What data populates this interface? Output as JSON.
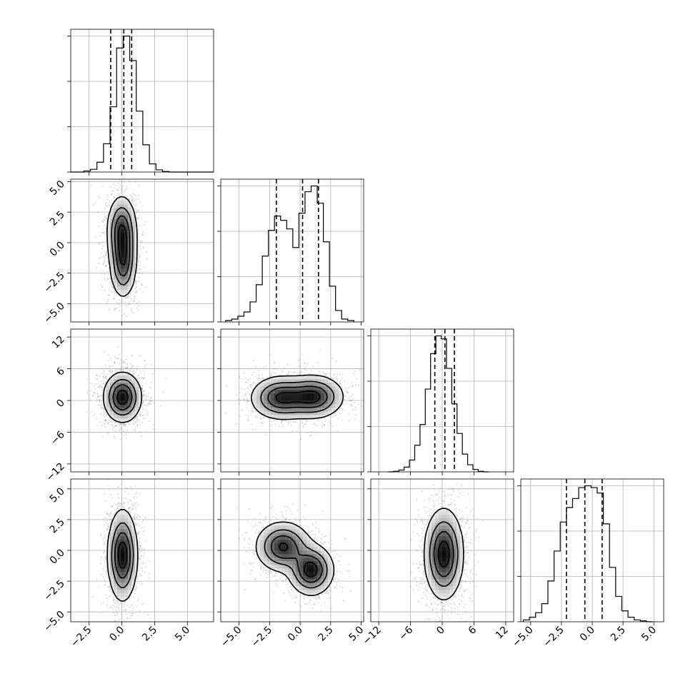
{
  "chart_data": {
    "type": "corner",
    "title": "",
    "grid": true,
    "variables": [
      {
        "range": [
          -3.9,
          7.0
        ],
        "ticks": [
          -2.5,
          0.0,
          2.5,
          5.0
        ],
        "tick_labels": [
          "−2.5",
          "0.0",
          "2.5",
          "5.0"
        ],
        "mean": 0.1,
        "sd": 0.65
      },
      {
        "range": [
          -6.5,
          5.2
        ],
        "ticks": [
          -5.0,
          -2.5,
          0.0,
          2.5,
          5.0
        ],
        "tick_labels": [
          "−5.0",
          "−2.5",
          "0.0",
          "2.5",
          "5.0"
        ],
        "mean": 0.0,
        "sd": 2.0
      },
      {
        "range": [
          -13.5,
          13.5
        ],
        "ticks": [
          -12,
          -6,
          0,
          6,
          12
        ],
        "tick_labels": [
          "−12",
          "−6",
          "0",
          "6",
          "12"
        ],
        "mean": 0.5,
        "sd": 2.1
      },
      {
        "range": [
          -5.8,
          5.8
        ],
        "ticks": [
          -5.0,
          -2.5,
          0.0,
          2.5,
          5.0
        ],
        "tick_labels": [
          "−5.0",
          "−2.5",
          "0.0",
          "2.5",
          "5.0"
        ],
        "mean": -0.6,
        "sd": 1.8
      }
    ],
    "quantile_lines": [
      [
        -0.85,
        0.15,
        0.75
      ],
      [
        -1.95,
        0.2,
        1.5
      ],
      [
        -1.4,
        0.5,
        2.3
      ],
      [
        -2.1,
        -0.6,
        0.8
      ]
    ],
    "histograms": [
      {
        "edges": [
          -3.9,
          -3.4,
          -2.9,
          -2.4,
          -1.9,
          -1.4,
          -0.9,
          -0.4,
          0.1,
          0.6,
          1.1,
          1.6,
          2.1,
          2.6,
          3.1,
          3.6,
          4.1,
          4.6,
          5.1,
          5.6,
          6.1,
          6.6,
          7.0
        ],
        "counts": [
          0,
          0,
          2,
          5,
          18,
          52,
          120,
          228,
          250,
          205,
          112,
          50,
          15,
          4,
          1,
          0,
          0,
          0,
          0,
          0,
          0,
          0
        ]
      },
      {
        "edges": [
          -6.1,
          -5.6,
          -5.1,
          -4.6,
          -4.1,
          -3.6,
          -3.1,
          -2.6,
          -2.1,
          -1.6,
          -1.1,
          -0.6,
          -0.1,
          0.4,
          0.9,
          1.4,
          1.9,
          2.4,
          2.9,
          3.4,
          3.9,
          4.4
        ],
        "counts": [
          2,
          4,
          8,
          14,
          28,
          52,
          92,
          128,
          148,
          142,
          130,
          104,
          152,
          182,
          190,
          166,
          112,
          50,
          16,
          4,
          2
        ]
      },
      {
        "edges": [
          -10.2,
          -9.2,
          -8.2,
          -7.2,
          -6.2,
          -5.2,
          -4.2,
          -3.2,
          -2.2,
          -1.2,
          -0.2,
          0.8,
          1.8,
          2.8,
          3.8,
          4.8,
          5.8,
          6.8,
          7.8,
          8.8
        ],
        "counts": [
          0,
          1,
          3,
          8,
          20,
          45,
          80,
          140,
          200,
          230,
          225,
          175,
          115,
          65,
          30,
          12,
          4,
          1,
          0
        ]
      },
      {
        "edges": [
          -5.6,
          -5.1,
          -4.6,
          -4.1,
          -3.6,
          -3.1,
          -2.6,
          -2.1,
          -1.6,
          -1.1,
          -0.6,
          -0.1,
          0.4,
          0.9,
          1.4,
          1.9,
          2.4,
          2.9,
          3.4,
          3.9,
          4.4,
          4.9
        ],
        "counts": [
          2,
          5,
          10,
          20,
          45,
          78,
          110,
          126,
          136,
          148,
          150,
          148,
          142,
          108,
          60,
          28,
          12,
          5,
          2,
          1,
          0
        ]
      }
    ],
    "pairs": [
      {
        "x": 0,
        "y": 1,
        "blobs": [
          [
            0.0,
            1.0,
            0.55,
            1.4,
            1.0
          ],
          [
            0.1,
            -1.7,
            0.5,
            1.4,
            0.9
          ]
        ]
      },
      {
        "x": 0,
        "y": 2,
        "blobs": [
          [
            0.05,
            0.6,
            0.7,
            2.3,
            1.0
          ]
        ]
      },
      {
        "x": 1,
        "y": 2,
        "blobs": [
          [
            -1.6,
            0.5,
            1.2,
            2.0,
            0.95
          ],
          [
            1.1,
            0.7,
            1.2,
            2.0,
            1.0
          ]
        ]
      },
      {
        "x": 0,
        "y": 3,
        "blobs": [
          [
            0.05,
            -0.4,
            0.55,
            1.8,
            1.0
          ]
        ]
      },
      {
        "x": 1,
        "y": 3,
        "blobs": [
          [
            -1.4,
            0.3,
            1.1,
            1.0,
            0.9
          ],
          [
            0.9,
            -1.6,
            0.9,
            1.0,
            1.0
          ]
        ]
      },
      {
        "x": 2,
        "y": 3,
        "blobs": [
          [
            0.3,
            -0.3,
            1.8,
            1.8,
            1.0
          ]
        ]
      }
    ],
    "contour_levels": [
      0.12,
      0.35,
      0.6,
      0.85
    ],
    "scatter_points_per_panel": 1600,
    "histogram_yticks_count": 3
  }
}
